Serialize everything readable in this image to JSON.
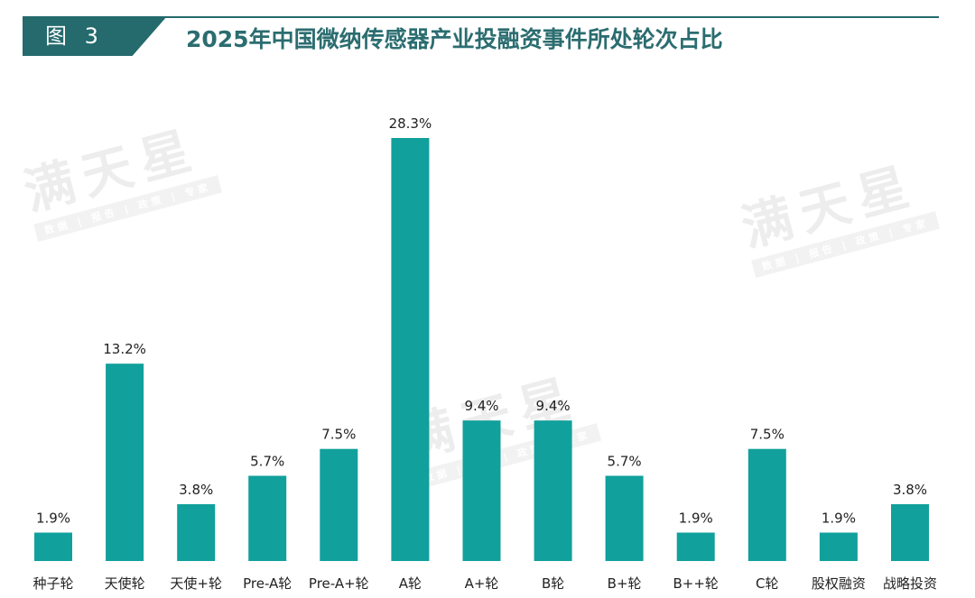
{
  "figure": {
    "badge": "图 3",
    "title": "2025年中国微纳传感器产业投融资事件所处轮次占比"
  },
  "watermarks": [
    {
      "big": "满天星",
      "bar": "数据 | 报告 | 政策 | 专家"
    },
    {
      "big": "满天星",
      "bar": "数据 | 报告 | 政策 | 专家"
    },
    {
      "big": "满天星",
      "bar": "数据 | 报告 | 政策 | 专家"
    }
  ],
  "chart_data": {
    "type": "bar",
    "title": "2025年中国微纳传感器产业投融资事件所处轮次占比",
    "xlabel": "",
    "ylabel": "",
    "unit": "%",
    "ylim": [
      0,
      30
    ],
    "grid": false,
    "legend": "none",
    "bar_color": "#11a09c",
    "categories": [
      "种子轮",
      "天使轮",
      "天使+轮",
      "Pre-A轮",
      "Pre-A+轮",
      "A轮",
      "A+轮",
      "B轮",
      "B+轮",
      "B++轮",
      "C轮",
      "股权融资",
      "战略投资"
    ],
    "values": [
      1.9,
      13.2,
      3.8,
      5.7,
      7.5,
      28.3,
      9.4,
      9.4,
      5.7,
      1.9,
      7.5,
      1.9,
      3.8
    ],
    "value_labels": [
      "1.9%",
      "13.2%",
      "3.8%",
      "5.7%",
      "7.5%",
      "28.3%",
      "9.4%",
      "9.4%",
      "5.7%",
      "1.9%",
      "7.5%",
      "1.9%",
      "3.8%"
    ],
    "tick_labels": [
      "种子轮",
      "天使轮",
      "天使+轮",
      "Pre-A轮",
      "Pre-A+轮",
      "A轮",
      "A+轮",
      "B轮",
      "B+轮",
      "B++轮",
      "C轮",
      "股权融资",
      "战略投资"
    ]
  },
  "colors": {
    "accent": "#256a6d",
    "title": "#2b6d70",
    "bar": "#11a09c"
  }
}
